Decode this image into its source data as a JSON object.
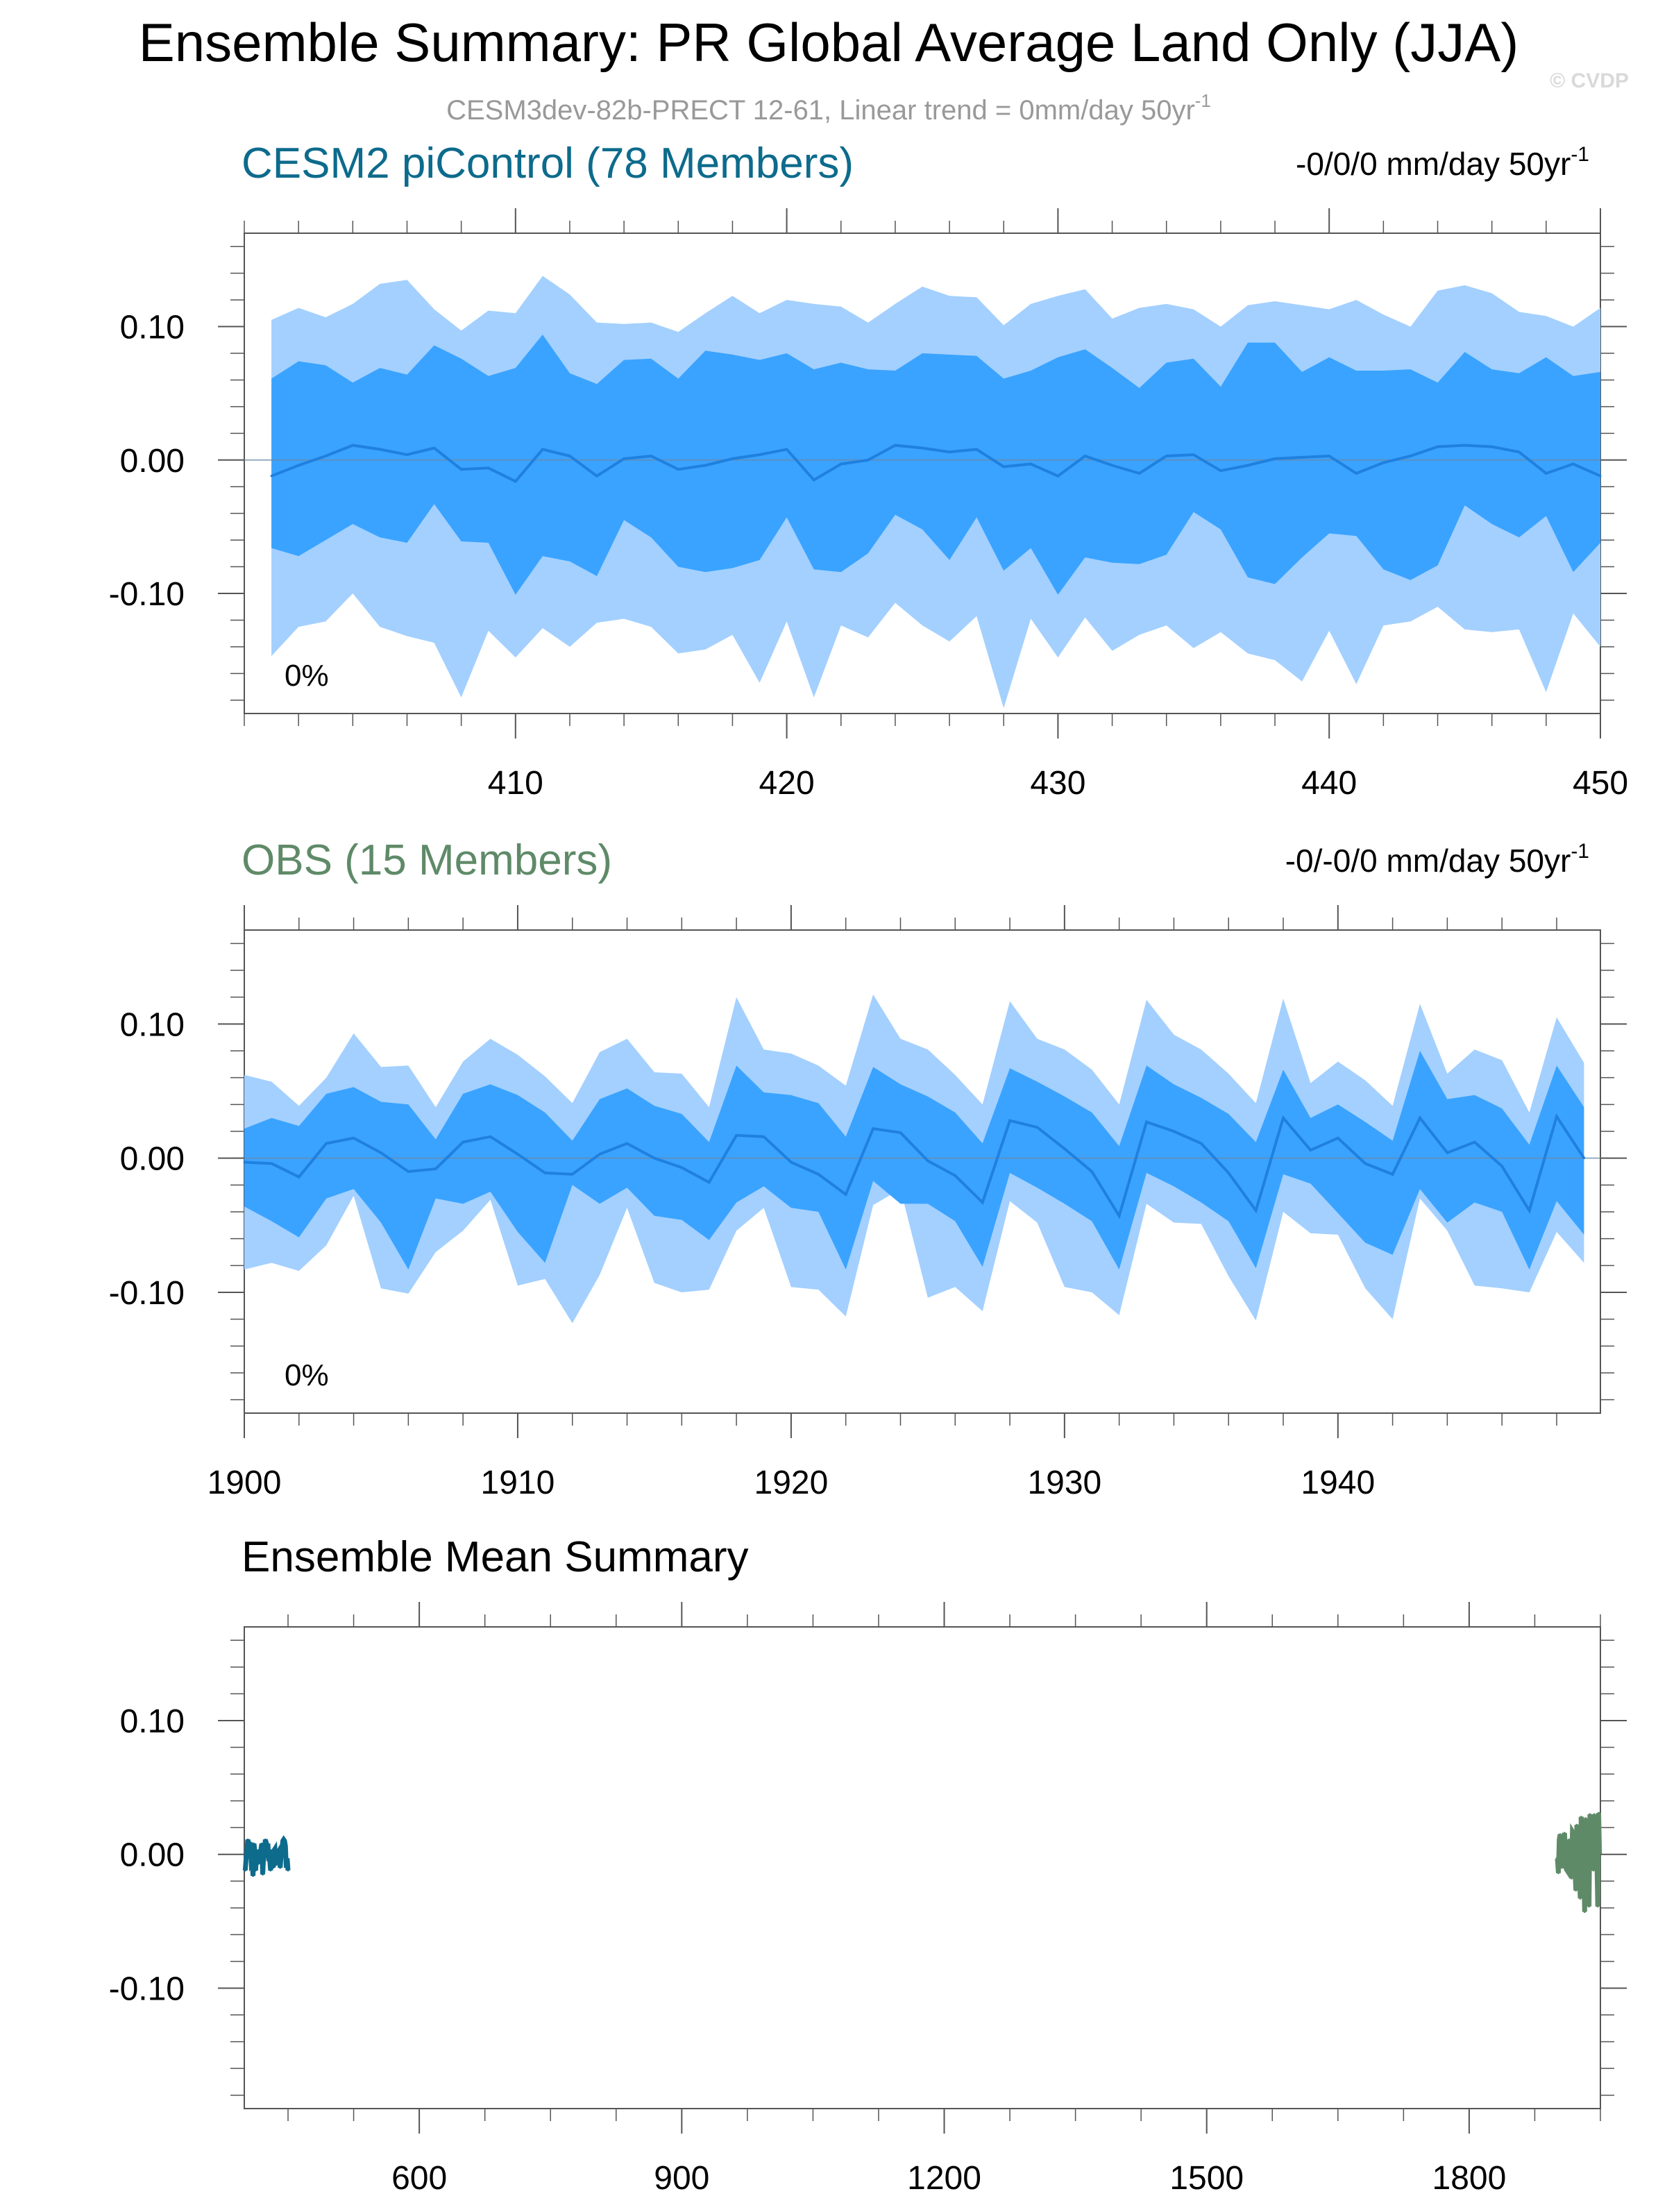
{
  "header": {
    "title": "Ensemble Summary: PR Global Average Land Only (JJA)",
    "subtitle": "CESM3dev-82b-PRECT 12-61, Linear trend = 0mm/day 50yr",
    "subtitle_sup": "-1",
    "watermark": "© CVDP"
  },
  "colors": {
    "band_outer": "#a3d0ff",
    "band_inner": "#3aa3ff",
    "mean_line": "#1f80e0",
    "cesm_title": "#0d6b8c",
    "obs_title": "#5f8a68",
    "axis": "#555555",
    "subtitle": "#999999"
  },
  "chart_data": [
    {
      "type": "area",
      "title": "CESM2 piControl (78 Members)",
      "trend": "-0/0/0 mm/day 50yr",
      "trend_sup": "-1",
      "pct_label": "0%",
      "x": [
        401,
        402,
        403,
        404,
        405,
        406,
        407,
        408,
        409,
        410,
        411,
        412,
        413,
        414,
        415,
        416,
        417,
        418,
        419,
        420,
        421,
        422,
        423,
        424,
        425,
        426,
        427,
        428,
        429,
        430,
        431,
        432,
        433,
        434,
        435,
        436,
        437,
        438,
        439,
        440,
        441,
        442,
        443,
        444,
        445,
        446,
        447,
        448,
        449,
        450
      ],
      "xlim": [
        400,
        450
      ],
      "ylim": [
        -0.19,
        0.17
      ],
      "yticks": [
        0.1,
        0.0,
        -0.1
      ],
      "ytick_labels": [
        "0.10",
        "0.00",
        "-0.10"
      ],
      "xticks": [
        410,
        420,
        430,
        440,
        450
      ],
      "xtick_labels": [
        "410",
        "420",
        "430",
        "440",
        "450"
      ],
      "outer_upper": [
        0.105,
        0.114,
        0.107,
        0.117,
        0.132,
        0.135,
        0.113,
        0.097,
        0.112,
        0.11,
        0.138,
        0.124,
        0.103,
        0.102,
        0.103,
        0.096,
        0.11,
        0.123,
        0.11,
        0.12,
        0.117,
        0.115,
        0.103,
        0.117,
        0.13,
        0.123,
        0.122,
        0.101,
        0.117,
        0.123,
        0.128,
        0.106,
        0.114,
        0.117,
        0.113,
        0.1,
        0.116,
        0.119,
        0.116,
        0.113,
        0.12,
        0.109,
        0.1,
        0.127,
        0.131,
        0.125,
        0.111,
        0.108,
        0.1,
        0.114
      ],
      "inner_upper": [
        0.061,
        0.074,
        0.071,
        0.058,
        0.069,
        0.064,
        0.086,
        0.076,
        0.063,
        0.069,
        0.094,
        0.065,
        0.057,
        0.075,
        0.076,
        0.061,
        0.082,
        0.079,
        0.075,
        0.08,
        0.068,
        0.073,
        0.068,
        0.067,
        0.08,
        0.079,
        0.078,
        0.061,
        0.067,
        0.077,
        0.083,
        0.069,
        0.054,
        0.073,
        0.076,
        0.055,
        0.088,
        0.088,
        0.066,
        0.077,
        0.067,
        0.067,
        0.068,
        0.058,
        0.081,
        0.068,
        0.065,
        0.077,
        0.063,
        0.066
      ],
      "mean": [
        -0.012,
        -0.004,
        0.003,
        0.011,
        0.008,
        0.004,
        0.009,
        -0.007,
        -0.006,
        -0.016,
        0.008,
        0.003,
        -0.012,
        0.001,
        0.003,
        -0.007,
        -0.004,
        0.001,
        0.004,
        0.008,
        -0.015,
        -0.003,
        0.0,
        0.011,
        0.009,
        0.006,
        0.008,
        -0.005,
        -0.003,
        -0.012,
        0.003,
        -0.004,
        -0.01,
        0.003,
        0.004,
        -0.008,
        -0.004,
        0.001,
        0.002,
        0.003,
        -0.01,
        -0.002,
        0.003,
        0.01,
        0.011,
        0.01,
        0.006,
        -0.01,
        -0.003,
        -0.012
      ],
      "inner_lower": [
        -0.066,
        -0.072,
        -0.06,
        -0.048,
        -0.058,
        -0.062,
        -0.033,
        -0.061,
        -0.062,
        -0.101,
        -0.072,
        -0.076,
        -0.087,
        -0.045,
        -0.058,
        -0.08,
        -0.084,
        -0.081,
        -0.075,
        -0.043,
        -0.082,
        -0.084,
        -0.07,
        -0.041,
        -0.052,
        -0.075,
        -0.043,
        -0.083,
        -0.066,
        -0.101,
        -0.073,
        -0.077,
        -0.078,
        -0.071,
        -0.039,
        -0.052,
        -0.088,
        -0.093,
        -0.073,
        -0.055,
        -0.057,
        -0.082,
        -0.09,
        -0.079,
        -0.034,
        -0.048,
        -0.058,
        -0.042,
        -0.084,
        -0.062
      ],
      "outer_lower": [
        -0.147,
        -0.125,
        -0.121,
        -0.1,
        -0.125,
        -0.132,
        -0.137,
        -0.178,
        -0.128,
        -0.148,
        -0.126,
        -0.14,
        -0.122,
        -0.119,
        -0.125,
        -0.145,
        -0.142,
        -0.131,
        -0.167,
        -0.121,
        -0.178,
        -0.124,
        -0.133,
        -0.107,
        -0.124,
        -0.136,
        -0.117,
        -0.186,
        -0.119,
        -0.148,
        -0.118,
        -0.143,
        -0.131,
        -0.124,
        -0.141,
        -0.129,
        -0.145,
        -0.15,
        -0.166,
        -0.128,
        -0.168,
        -0.124,
        -0.121,
        -0.11,
        -0.127,
        -0.129,
        -0.127,
        -0.174,
        -0.115,
        -0.14
      ]
    },
    {
      "type": "area",
      "title": "OBS (15 Members)",
      "trend": "-0/-0/0 mm/day 50yr",
      "trend_sup": "-1",
      "pct_label": "0%",
      "x": [
        1900,
        1901,
        1902,
        1903,
        1904,
        1905,
        1906,
        1907,
        1908,
        1909,
        1910,
        1911,
        1912,
        1913,
        1914,
        1915,
        1916,
        1917,
        1918,
        1919,
        1920,
        1921,
        1922,
        1923,
        1924,
        1925,
        1926,
        1927,
        1928,
        1929,
        1930,
        1931,
        1932,
        1933,
        1934,
        1935,
        1936,
        1937,
        1938,
        1939,
        1940,
        1941,
        1942,
        1943,
        1944,
        1945,
        1946,
        1947,
        1948,
        1949
      ],
      "xlim": [
        1900,
        1949.6
      ],
      "ylim": [
        -0.19,
        0.17
      ],
      "yticks": [
        0.1,
        0.0,
        -0.1
      ],
      "ytick_labels": [
        "0.10",
        "0.00",
        "-0.10"
      ],
      "xticks": [
        1900,
        1910,
        1920,
        1930,
        1940
      ],
      "xtick_labels": [
        "1900",
        "1910",
        "1920",
        "1930",
        "1940"
      ],
      "outer_upper": [
        0.062,
        0.057,
        0.039,
        0.06,
        0.093,
        0.068,
        0.069,
        0.038,
        0.072,
        0.089,
        0.077,
        0.061,
        0.041,
        0.079,
        0.089,
        0.064,
        0.063,
        0.038,
        0.12,
        0.081,
        0.078,
        0.069,
        0.054,
        0.122,
        0.089,
        0.081,
        0.062,
        0.04,
        0.117,
        0.089,
        0.081,
        0.066,
        0.04,
        0.118,
        0.092,
        0.081,
        0.063,
        0.041,
        0.119,
        0.056,
        0.072,
        0.058,
        0.039,
        0.115,
        0.063,
        0.081,
        0.073,
        0.034,
        0.105,
        0.071
      ],
      "inner_upper": [
        0.022,
        0.03,
        0.024,
        0.048,
        0.053,
        0.042,
        0.04,
        0.014,
        0.048,
        0.055,
        0.047,
        0.034,
        0.013,
        0.044,
        0.052,
        0.039,
        0.033,
        0.012,
        0.069,
        0.049,
        0.047,
        0.041,
        0.016,
        0.068,
        0.055,
        0.046,
        0.034,
        0.011,
        0.067,
        0.057,
        0.046,
        0.034,
        0.009,
        0.069,
        0.055,
        0.045,
        0.033,
        0.012,
        0.066,
        0.03,
        0.04,
        0.027,
        0.013,
        0.08,
        0.044,
        0.047,
        0.037,
        0.01,
        0.069,
        0.038
      ],
      "mean": [
        -0.003,
        -0.004,
        -0.014,
        0.011,
        0.015,
        0.004,
        -0.01,
        -0.008,
        0.012,
        0.016,
        0.003,
        -0.011,
        -0.012,
        0.003,
        0.011,
        0.0,
        -0.007,
        -0.018,
        0.017,
        0.016,
        -0.003,
        -0.012,
        -0.027,
        0.022,
        0.019,
        -0.002,
        -0.013,
        -0.033,
        0.028,
        0.023,
        0.007,
        -0.01,
        -0.043,
        0.027,
        0.02,
        0.011,
        -0.011,
        -0.039,
        0.03,
        0.006,
        0.015,
        -0.004,
        -0.012,
        0.03,
        0.004,
        0.012,
        -0.006,
        -0.039,
        0.031,
        0.0
      ],
      "inner_lower": [
        -0.036,
        -0.047,
        -0.059,
        -0.03,
        -0.023,
        -0.048,
        -0.083,
        -0.03,
        -0.034,
        -0.025,
        -0.055,
        -0.078,
        -0.02,
        -0.034,
        -0.022,
        -0.043,
        -0.046,
        -0.061,
        -0.033,
        -0.021,
        -0.037,
        -0.04,
        -0.083,
        -0.017,
        -0.034,
        -0.034,
        -0.047,
        -0.081,
        -0.011,
        -0.022,
        -0.034,
        -0.047,
        -0.083,
        -0.011,
        -0.021,
        -0.033,
        -0.047,
        -0.082,
        -0.012,
        -0.019,
        -0.041,
        -0.063,
        -0.072,
        -0.023,
        -0.048,
        -0.033,
        -0.04,
        -0.083,
        -0.032,
        -0.057
      ],
      "outer_lower": [
        -0.083,
        -0.078,
        -0.084,
        -0.065,
        -0.028,
        -0.097,
        -0.101,
        -0.07,
        -0.054,
        -0.031,
        -0.095,
        -0.09,
        -0.123,
        -0.087,
        -0.037,
        -0.093,
        -0.1,
        -0.098,
        -0.054,
        -0.037,
        -0.096,
        -0.098,
        -0.118,
        -0.035,
        -0.023,
        -0.104,
        -0.096,
        -0.114,
        -0.032,
        -0.048,
        -0.096,
        -0.1,
        -0.117,
        -0.034,
        -0.048,
        -0.049,
        -0.088,
        -0.121,
        -0.04,
        -0.056,
        -0.057,
        -0.097,
        -0.12,
        -0.03,
        -0.054,
        -0.095,
        -0.097,
        -0.1,
        -0.055,
        -0.078
      ]
    },
    {
      "type": "line",
      "title": "Ensemble Mean Summary",
      "xlim": [
        400,
        1950
      ],
      "ylim": [
        -0.19,
        0.17
      ],
      "yticks": [
        0.1,
        0.0,
        -0.1
      ],
      "ytick_labels": [
        "0.10",
        "0.00",
        "-0.10"
      ],
      "xticks": [
        600,
        900,
        1200,
        1500,
        1800
      ],
      "xtick_labels": [
        "600",
        "900",
        "1200",
        "1500",
        "1800"
      ],
      "series": [
        {
          "name": "CESM2 piControl",
          "color": "#0d6b8c",
          "x_start": 401,
          "values": [
            -0.012,
            -0.004,
            0.003,
            0.011,
            0.008,
            0.004,
            0.009,
            -0.007,
            -0.006,
            -0.016,
            0.008,
            0.003,
            -0.012,
            0.001,
            0.003,
            -0.007,
            -0.004,
            0.001,
            0.004,
            0.008,
            -0.015,
            -0.003,
            0.0,
            0.011,
            0.009,
            0.006,
            0.008,
            -0.005,
            -0.003,
            -0.012,
            0.003,
            -0.004,
            -0.01,
            0.003,
            0.004,
            -0.008,
            -0.004,
            0.001,
            0.002,
            0.003,
            -0.01,
            -0.002,
            0.003,
            0.01,
            0.011,
            0.01,
            0.006,
            -0.01,
            -0.003,
            -0.012
          ]
        },
        {
          "name": "OBS",
          "color": "#5f8a68",
          "x_start": 1900,
          "values": [
            -0.003,
            -0.004,
            -0.014,
            0.011,
            0.015,
            0.004,
            -0.01,
            -0.008,
            0.012,
            0.016,
            0.003,
            -0.011,
            -0.012,
            0.003,
            0.011,
            0.0,
            -0.007,
            -0.018,
            0.017,
            0.016,
            -0.003,
            -0.012,
            -0.027,
            0.022,
            0.019,
            -0.002,
            -0.013,
            -0.033,
            0.028,
            0.023,
            0.007,
            -0.01,
            -0.043,
            0.027,
            0.02,
            0.011,
            -0.011,
            -0.039,
            0.03,
            0.006,
            0.015,
            -0.004,
            -0.012,
            0.03,
            0.004,
            0.012,
            -0.006,
            -0.039,
            0.031,
            0.0
          ]
        }
      ]
    }
  ]
}
